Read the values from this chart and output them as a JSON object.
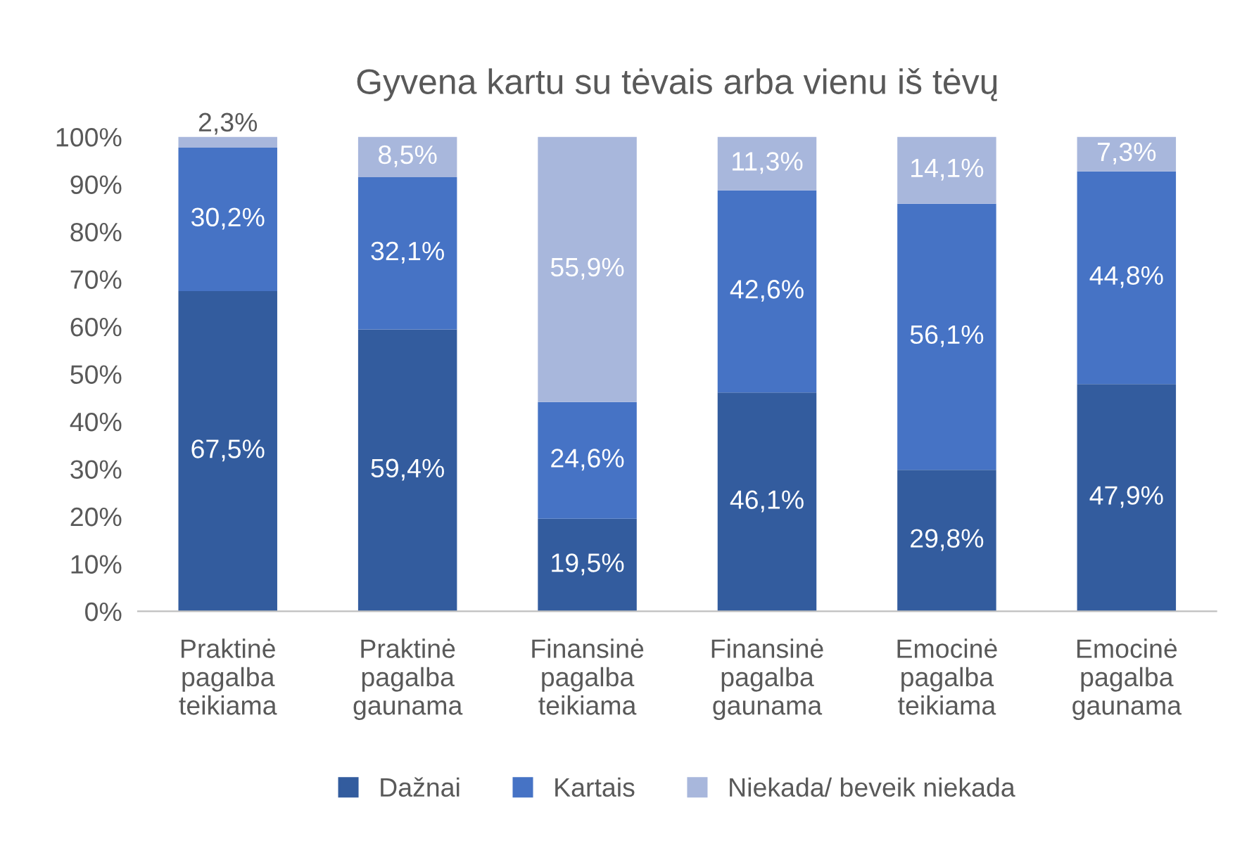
{
  "chart_data": {
    "type": "bar",
    "stacked": true,
    "title": "Gyvena kartu su tėvais arba vienu iš tėvų",
    "categories": [
      "Praktinė\npagalba\nteikiama",
      "Praktinė\npagalba\ngaunama",
      "Finansinė\npagalba\nteikiama",
      "Finansinė\npagalba\ngaunama",
      "Emocinė\npagalba\nteikiama",
      "Emocinė\npagalba\ngaunama"
    ],
    "series": [
      {
        "name": "Dažnai",
        "color": "#335c9e",
        "values": [
          67.5,
          59.4,
          19.5,
          46.1,
          29.8,
          47.9
        ],
        "value_labels": [
          "67,5%",
          "59,4%",
          "19,5%",
          "46,1%",
          "29,8%",
          "47,9%"
        ]
      },
      {
        "name": "Kartais",
        "color": "#4673c5",
        "values": [
          30.2,
          32.1,
          24.6,
          42.6,
          56.1,
          44.8
        ],
        "value_labels": [
          "30,2%",
          "32,1%",
          "24,6%",
          "42,6%",
          "56,1%",
          "44,8%"
        ]
      },
      {
        "name": "Niekada/ beveik niekada",
        "color": "#a8b7dc",
        "values": [
          2.3,
          8.5,
          55.9,
          11.3,
          14.1,
          7.3
        ],
        "value_labels": [
          "2,3%",
          "8,5%",
          "55,9%",
          "11,3%",
          "14,1%",
          "7,3%"
        ]
      }
    ],
    "ylim": [
      0,
      100
    ],
    "yticks": [
      {
        "value": 0,
        "label": "0%"
      },
      {
        "value": 10,
        "label": "10%"
      },
      {
        "value": 20,
        "label": "20%"
      },
      {
        "value": 30,
        "label": "30%"
      },
      {
        "value": 40,
        "label": "40%"
      },
      {
        "value": 50,
        "label": "50%"
      },
      {
        "value": 60,
        "label": "60%"
      },
      {
        "value": 70,
        "label": "70%"
      },
      {
        "value": 80,
        "label": "80%"
      },
      {
        "value": 90,
        "label": "90%"
      },
      {
        "value": 100,
        "label": "100%"
      }
    ],
    "grid": false,
    "legend": "bottom"
  }
}
